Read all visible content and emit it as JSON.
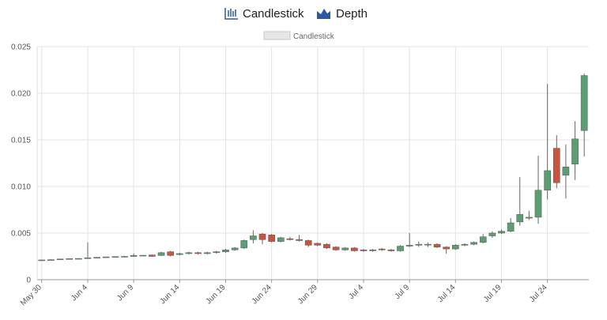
{
  "tabs": [
    "Candlestick",
    "Depth"
  ],
  "chart_data": {
    "type": "candlestick",
    "name": "Candlestick",
    "categories": [
      "May 30",
      null,
      null,
      null,
      null,
      "Jun 4",
      null,
      null,
      null,
      null,
      "Jun 9",
      null,
      null,
      null,
      null,
      "Jun 14",
      null,
      null,
      null,
      null,
      "Jun 19",
      null,
      null,
      null,
      null,
      "Jun 24",
      null,
      null,
      null,
      null,
      "Jun 29",
      null,
      null,
      null,
      null,
      "Jul 4",
      null,
      null,
      null,
      null,
      "Jul 9",
      null,
      null,
      null,
      null,
      "Jul 14",
      null,
      null,
      null,
      null,
      "Jul 19",
      null,
      null,
      null,
      null,
      "Jul 24",
      null,
      null,
      null,
      null
    ],
    "open": [
      0.0021,
      0.00212,
      0.00215,
      0.00222,
      0.00226,
      0.00228,
      0.00235,
      0.0024,
      0.00245,
      0.00248,
      0.0025,
      0.0026,
      0.00265,
      0.0026,
      0.003,
      0.0027,
      0.0028,
      0.0029,
      0.0028,
      0.0029,
      0.003,
      0.0032,
      0.0034,
      0.0043,
      0.0049,
      0.0048,
      0.0041,
      0.0044,
      0.0043,
      0.0042,
      0.0039,
      0.0038,
      0.0035,
      0.0032,
      0.0034,
      0.0032,
      0.0031,
      0.0033,
      0.0032,
      0.0031,
      0.0036,
      0.0037,
      0.0038,
      0.0038,
      0.0035,
      0.0033,
      0.0037,
      0.0038,
      0.004,
      0.0047,
      0.005,
      0.0052,
      0.0062,
      0.0066,
      0.0067,
      0.0096,
      0.0141,
      0.0112,
      0.0124,
      0.016
    ],
    "high": [
      0.00215,
      0.00218,
      0.00225,
      0.00228,
      0.0023,
      0.004,
      0.00242,
      0.00247,
      0.0025,
      0.00255,
      0.0028,
      0.00265,
      0.0027,
      0.003,
      0.0031,
      0.0029,
      0.003,
      0.003,
      0.003,
      0.0031,
      0.0033,
      0.0035,
      0.0043,
      0.0053,
      0.005,
      0.0049,
      0.0046,
      0.0046,
      0.0048,
      0.0043,
      0.004,
      0.0039,
      0.0036,
      0.0035,
      0.0035,
      0.0033,
      0.0033,
      0.0034,
      0.0033,
      0.0037,
      0.005,
      0.0041,
      0.004,
      0.0039,
      0.0036,
      0.0038,
      0.0039,
      0.0041,
      0.0049,
      0.0052,
      0.0054,
      0.0066,
      0.011,
      0.0074,
      0.0133,
      0.021,
      0.0155,
      0.0145,
      0.017,
      0.0221
    ],
    "low": [
      0.00205,
      0.0021,
      0.00213,
      0.0022,
      0.00224,
      0.00226,
      0.00232,
      0.00237,
      0.00242,
      0.00245,
      0.00245,
      0.00255,
      0.00245,
      0.00255,
      0.0025,
      0.0026,
      0.0027,
      0.0027,
      0.0027,
      0.0028,
      0.0029,
      0.0031,
      0.0033,
      0.0039,
      0.0038,
      0.004,
      0.004,
      0.0042,
      0.0041,
      0.0035,
      0.0036,
      0.0033,
      0.0031,
      0.0031,
      0.003,
      0.003,
      0.003,
      0.0031,
      0.003,
      0.003,
      0.0035,
      0.0035,
      0.0035,
      0.0034,
      0.0028,
      0.0032,
      0.0036,
      0.0037,
      0.0039,
      0.0045,
      0.0049,
      0.0051,
      0.0058,
      0.0064,
      0.006,
      0.0086,
      0.0098,
      0.0087,
      0.0107,
      0.0132
    ],
    "close": [
      0.00212,
      0.00215,
      0.00222,
      0.00226,
      0.00228,
      0.00235,
      0.0024,
      0.00245,
      0.00248,
      0.0025,
      0.0026,
      0.00262,
      0.0025,
      0.0029,
      0.0026,
      0.0028,
      0.0029,
      0.0028,
      0.0029,
      0.003,
      0.0032,
      0.0034,
      0.0042,
      0.0047,
      0.0043,
      0.0041,
      0.0045,
      0.0043,
      0.0042,
      0.0037,
      0.0037,
      0.0034,
      0.0032,
      0.0034,
      0.0031,
      0.0031,
      0.0032,
      0.0032,
      0.0031,
      0.0036,
      0.0037,
      0.0038,
      0.0038,
      0.0035,
      0.0033,
      0.0037,
      0.0038,
      0.004,
      0.0046,
      0.005,
      0.0052,
      0.0061,
      0.007,
      0.0067,
      0.0096,
      0.0117,
      0.0104,
      0.0121,
      0.0151,
      0.0219
    ],
    "up_color": "#5b9e72",
    "down_color": "#c95440",
    "ylim": [
      0,
      0.025
    ],
    "yticks": [
      0,
      0.005,
      {
        "value": 0.01,
        "label": "0.010"
      },
      0.015,
      {
        "value": 0.02,
        "label": "0.020"
      },
      0.025
    ],
    "grid": true
  }
}
